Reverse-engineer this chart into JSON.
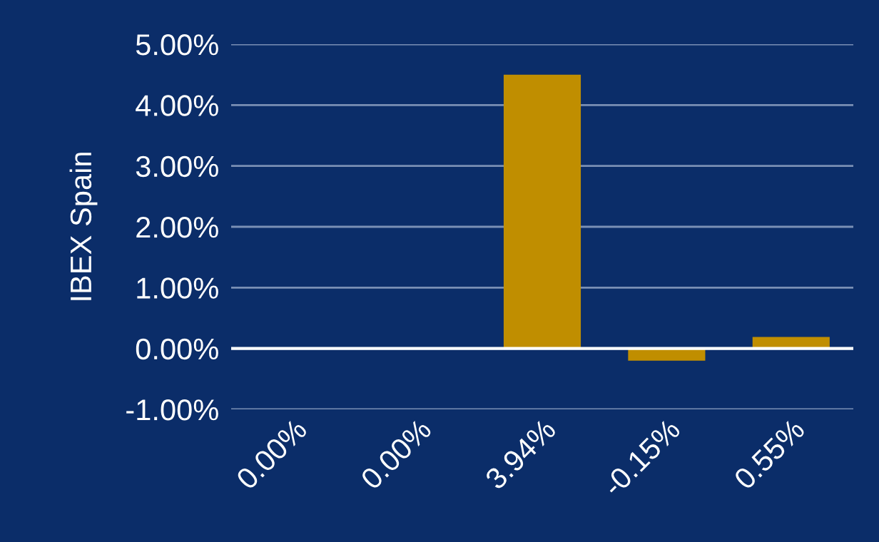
{
  "chart_data": {
    "type": "bar",
    "ylabel": "IBEX Spain",
    "categories": [
      "0.00%",
      "0.00%",
      "3.94%",
      "-0.15%",
      "0.55%"
    ],
    "values": [
      0,
      0,
      4.5,
      -0.2,
      0.19
    ],
    "color": "#c08e00",
    "ylim": [
      -1,
      5
    ],
    "yticks": [
      {
        "value": -1,
        "label": "-1.00%"
      },
      {
        "value": 0,
        "label": "0.00%"
      },
      {
        "value": 1,
        "label": "1.00%"
      },
      {
        "value": 2,
        "label": "2.00%"
      },
      {
        "value": 3,
        "label": "3.00%"
      },
      {
        "value": 4,
        "label": "4.00%"
      },
      {
        "value": 5,
        "label": "5.00%"
      }
    ],
    "grid": "y",
    "ref_lines": [
      {
        "axis": "y",
        "value": 0,
        "color": "#ffffff"
      }
    ]
  }
}
